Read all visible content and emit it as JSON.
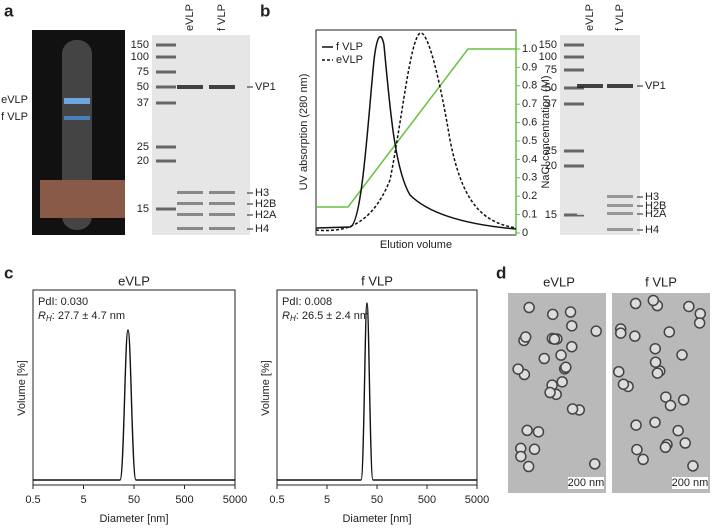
{
  "panel_a": {
    "label": "a",
    "photo_labels": [
      "eVLP",
      "f VLP"
    ],
    "gel": {
      "lanes": [
        "eVLP",
        "f VLP"
      ],
      "markers": [
        "150",
        "100",
        "75",
        "50",
        "37",
        "25",
        "20",
        "15"
      ],
      "bands": [
        "VP1",
        "H3",
        "H2B",
        "H2A",
        "H4"
      ]
    }
  },
  "panel_b": {
    "label": "b",
    "y_label": "UV absorption (280 nm)",
    "y2_label": "NaCl concentration (M)",
    "x_label": "Elution volume",
    "legend": [
      "f VLP",
      "eVLP"
    ],
    "y2_ticks": [
      "0",
      "0.1",
      "0.2",
      "0.3",
      "0.4",
      "0.5",
      "0.6",
      "0.7",
      "0.8",
      "0.9",
      "1.0"
    ],
    "gel": {
      "lanes": [
        "eVLP",
        "f VLP"
      ],
      "markers": [
        "150",
        "100",
        "75",
        "50",
        "37",
        "25",
        "20",
        "15"
      ],
      "bands": [
        "VP1",
        "H3",
        "H2B",
        "H2A",
        "H4"
      ]
    }
  },
  "panel_c": {
    "label": "c",
    "x_label": "Diameter [nm]",
    "y_label": "Volume [%]",
    "x_ticks": [
      "0.5",
      "5",
      "50",
      "500",
      "5000"
    ],
    "plots": [
      {
        "title": "eVLP",
        "pdi": "PdI: 0.030",
        "rh_symbol": "R",
        "rh_sub": "H",
        "rh_value": ": 27.7 ± 4.7 nm"
      },
      {
        "title": "f VLP",
        "pdi": "PdI: 0.008",
        "rh_symbol": "R",
        "rh_sub": "H",
        "rh_value": ": 26.5 ± 2.4 nm"
      }
    ]
  },
  "panel_d": {
    "label": "d",
    "images": [
      {
        "title": "eVLP",
        "scale_bar": "200 nm"
      },
      {
        "title": "f VLP",
        "scale_bar": "200 nm"
      }
    ]
  }
}
